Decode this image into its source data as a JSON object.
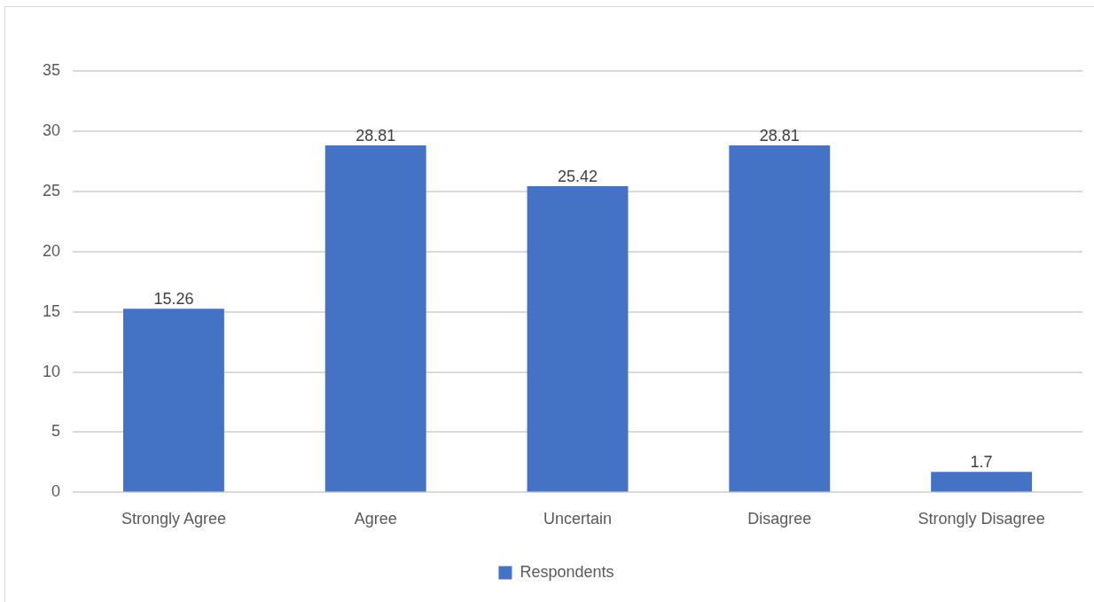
{
  "chart_data": {
    "type": "bar",
    "categories": [
      "Strongly Agree",
      "Agree",
      "Uncertain",
      "Disagree",
      "Strongly Disagree"
    ],
    "series": [
      {
        "name": "Respondents",
        "color": "#4472c4",
        "values": [
          15.26,
          28.81,
          25.42,
          28.81,
          1.7
        ]
      }
    ],
    "ylim": [
      0,
      35
    ],
    "yticks": [
      0,
      5,
      10,
      15,
      20,
      25,
      30,
      35
    ],
    "grid": "y",
    "legend": "bottom",
    "data_labels": true
  }
}
